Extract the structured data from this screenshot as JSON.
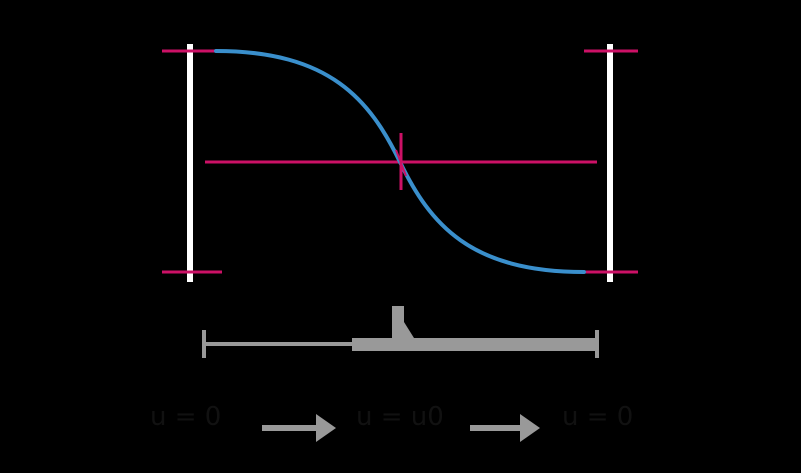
{
  "colors": {
    "background": "#000000",
    "wall": "#ffffff",
    "guide": "#cc1166",
    "curve": "#3a8fcc",
    "scale_bar": "#999999",
    "arrow": "#999999",
    "formula_text": "#111111"
  },
  "diagram": {
    "curve_description_hidden": "",
    "formulas": {
      "left": "u = 0",
      "middle": "u = u0",
      "right": "u = 0"
    }
  }
}
